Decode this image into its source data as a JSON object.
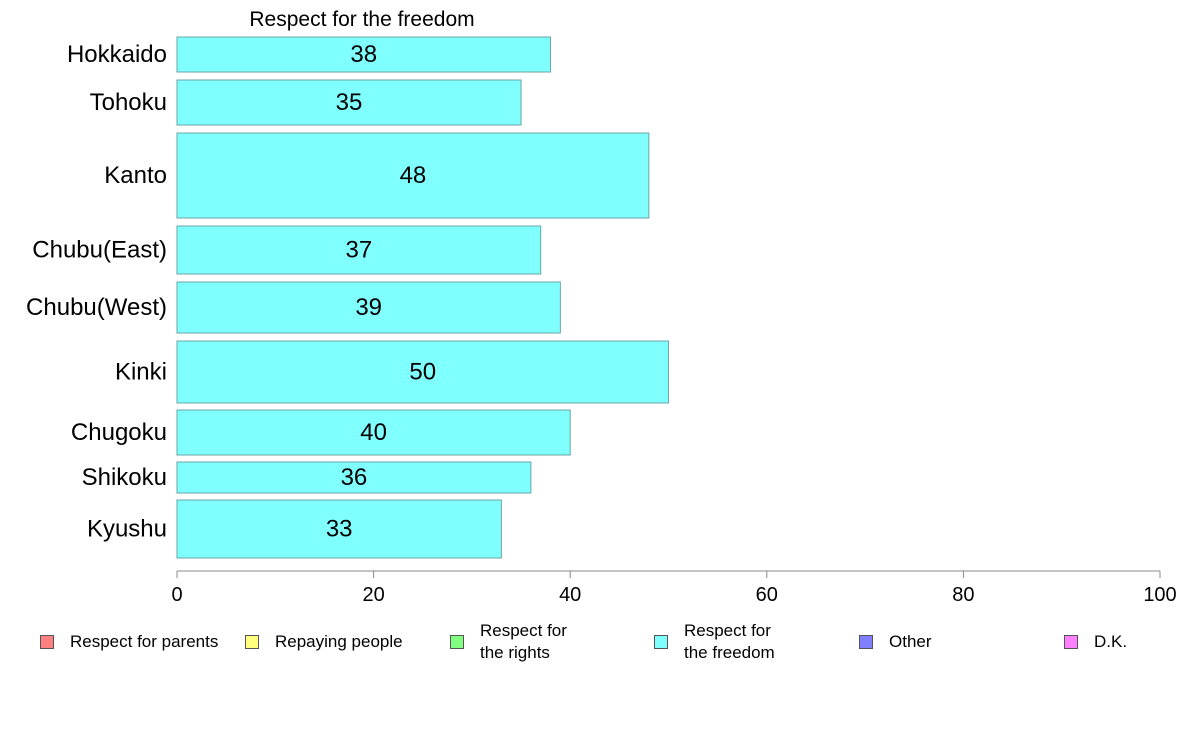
{
  "chart_data": {
    "type": "bar",
    "orientation": "horizontal",
    "title": "Respect for the freedom",
    "categories": [
      "Hokkaido",
      "Tohoku",
      "Kanto",
      "Chubu(East)",
      "Chubu(West)",
      "Kinki",
      "Chugoku",
      "Shikoku",
      "Kyushu"
    ],
    "values": [
      38,
      35,
      48,
      37,
      39,
      50,
      40,
      36,
      33
    ],
    "data_labels": [
      "38",
      "35",
      "48",
      "37",
      "39",
      "50",
      "40",
      "36",
      "33"
    ],
    "bar_color": "#80ffff",
    "xlim": [
      0,
      100
    ],
    "xticks": [
      0,
      20,
      40,
      60,
      80,
      100
    ],
    "xtick_labels": [
      "0",
      "20",
      "40",
      "60",
      "80",
      "100"
    ],
    "grid": false,
    "legend_position": "bottom"
  },
  "legend": {
    "items": [
      {
        "label": "Respect for parents",
        "color": "#ff8080"
      },
      {
        "label": "Repaying people",
        "color": "#ffff80"
      },
      {
        "label": "Respect for the rights",
        "color": "#80ff80"
      },
      {
        "label": "Respect for the freedom",
        "color": "#80ffff"
      },
      {
        "label": "Other",
        "color": "#8080ff"
      },
      {
        "label": "D.K.",
        "color": "#ff80ff"
      }
    ]
  }
}
